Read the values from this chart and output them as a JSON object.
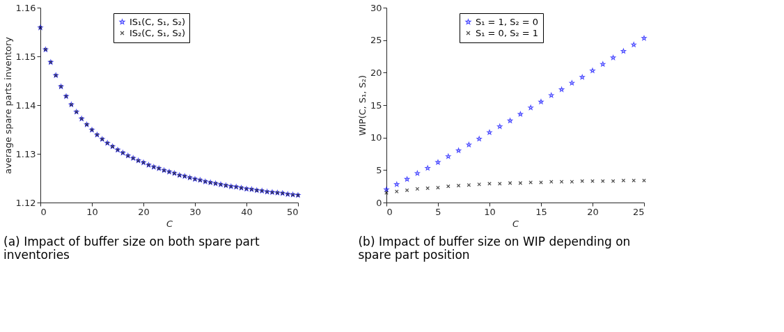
{
  "chart_data": [
    {
      "type": "scatter",
      "xlabel": "C",
      "ylabel": "average spare parts inventory",
      "annotations": [
        "(a) Impact of buffer size on both spare part inventories"
      ],
      "legend": "top",
      "grid": false,
      "x": [
        0,
        1,
        2,
        3,
        4,
        5,
        6,
        7,
        8,
        9,
        10,
        11,
        12,
        13,
        14,
        15,
        16,
        17,
        18,
        19,
        20,
        21,
        22,
        23,
        24,
        25,
        26,
        27,
        28,
        29,
        30,
        31,
        32,
        33,
        34,
        35,
        36,
        37,
        38,
        39,
        40,
        41,
        42,
        43,
        44,
        45,
        46,
        47,
        48,
        49,
        50
      ],
      "xlim": [
        0,
        50
      ],
      "xticks": [
        0,
        10,
        20,
        30,
        40,
        50
      ],
      "ylim": [
        1.12,
        1.16
      ],
      "yticks": [
        1.12,
        1.13,
        1.14,
        1.15,
        1.16
      ],
      "series": [
        {
          "name": "IS₁(C, S₁, S₂)",
          "color": "#0000ff",
          "marker": "star",
          "values": [
            1.1559,
            1.1514,
            1.1488,
            1.1461,
            1.1438,
            1.1418,
            1.1401,
            1.1386,
            1.1372,
            1.136,
            1.1349,
            1.1339,
            1.133,
            1.1322,
            1.1315,
            1.1308,
            1.1302,
            1.1296,
            1.1291,
            1.1286,
            1.1282,
            1.1277,
            1.1273,
            1.127,
            1.1266,
            1.1263,
            1.126,
            1.1256,
            1.1254,
            1.1251,
            1.1248,
            1.1246,
            1.1243,
            1.1241,
            1.1239,
            1.1237,
            1.1235,
            1.1233,
            1.1232,
            1.123,
            1.1228,
            1.1227,
            1.1225,
            1.1224,
            1.1222,
            1.1221,
            1.122,
            1.1219,
            1.1217,
            1.1216,
            1.1215
          ]
        },
        {
          "name": "IS₂(C, S₁, S₂)",
          "color": "#000000",
          "marker": "cross",
          "values": [
            1.1559,
            1.1514,
            1.1488,
            1.1461,
            1.1438,
            1.1418,
            1.1401,
            1.1386,
            1.1372,
            1.136,
            1.1349,
            1.1339,
            1.133,
            1.1322,
            1.1315,
            1.1308,
            1.1302,
            1.1296,
            1.1291,
            1.1286,
            1.1282,
            1.1277,
            1.1273,
            1.127,
            1.1266,
            1.1263,
            1.126,
            1.1256,
            1.1254,
            1.1251,
            1.1248,
            1.1246,
            1.1243,
            1.1241,
            1.1239,
            1.1237,
            1.1235,
            1.1233,
            1.1232,
            1.123,
            1.1228,
            1.1227,
            1.1225,
            1.1224,
            1.1222,
            1.1221,
            1.122,
            1.1219,
            1.1217,
            1.1216,
            1.1215
          ]
        }
      ]
    },
    {
      "type": "scatter",
      "xlabel": "C",
      "ylabel": "WIP(C, S₁, S₂)",
      "annotations": [
        "(b) Impact of buffer size on WIP depending on spare part position"
      ],
      "legend": "top",
      "grid": false,
      "x": [
        0,
        1,
        2,
        3,
        4,
        5,
        6,
        7,
        8,
        9,
        10,
        11,
        12,
        13,
        14,
        15,
        16,
        17,
        18,
        19,
        20,
        21,
        22,
        23,
        24,
        25
      ],
      "xlim": [
        0,
        25
      ],
      "xticks": [
        0,
        5,
        10,
        15,
        20,
        25
      ],
      "ylim": [
        0,
        30
      ],
      "yticks": [
        0,
        5,
        10,
        15,
        20,
        25,
        30
      ],
      "series": [
        {
          "name": "S₁ = 1, S₂ = 0",
          "color": "#0000ff",
          "marker": "star",
          "values": [
            2.0,
            2.8,
            3.6,
            4.5,
            5.3,
            6.2,
            7.1,
            8.0,
            8.9,
            9.8,
            10.8,
            11.7,
            12.6,
            13.6,
            14.6,
            15.5,
            16.5,
            17.4,
            18.4,
            19.3,
            20.3,
            21.3,
            22.3,
            23.3,
            24.3,
            25.3
          ]
        },
        {
          "name": "S₁ = 0, S₂ = 1",
          "color": "#000000",
          "marker": "cross",
          "values": [
            1.5,
            1.7,
            1.9,
            2.1,
            2.2,
            2.3,
            2.5,
            2.6,
            2.7,
            2.8,
            2.9,
            2.9,
            3.0,
            3.0,
            3.1,
            3.1,
            3.2,
            3.2,
            3.2,
            3.3,
            3.3,
            3.3,
            3.3,
            3.4,
            3.4,
            3.4
          ]
        }
      ]
    }
  ]
}
